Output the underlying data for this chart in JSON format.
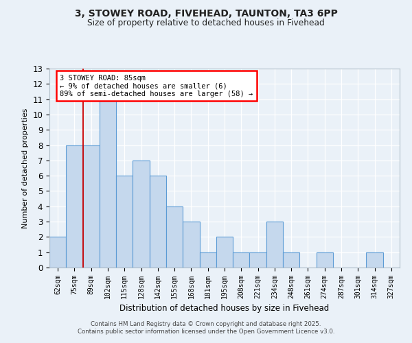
{
  "title1": "3, STOWEY ROAD, FIVEHEAD, TAUNTON, TA3 6PP",
  "title2": "Size of property relative to detached houses in Fivehead",
  "xlabel": "Distribution of detached houses by size in Fivehead",
  "ylabel": "Number of detached properties",
  "categories": [
    "62sqm",
    "75sqm",
    "89sqm",
    "102sqm",
    "115sqm",
    "128sqm",
    "142sqm",
    "155sqm",
    "168sqm",
    "181sqm",
    "195sqm",
    "208sqm",
    "221sqm",
    "234sqm",
    "248sqm",
    "261sqm",
    "274sqm",
    "287sqm",
    "301sqm",
    "314sqm",
    "327sqm"
  ],
  "values": [
    2,
    8,
    8,
    11,
    6,
    7,
    6,
    4,
    3,
    1,
    2,
    1,
    1,
    3,
    1,
    0,
    1,
    0,
    0,
    1,
    0
  ],
  "bar_color": "#c5d8ed",
  "bar_edge_color": "#5b9bd5",
  "red_line_index": 2,
  "annotation_title": "3 STOWEY ROAD: 85sqm",
  "annotation_line1": "← 9% of detached houses are smaller (6)",
  "annotation_line2": "89% of semi-detached houses are larger (58) →",
  "ylim": [
    0,
    13
  ],
  "yticks": [
    0,
    1,
    2,
    3,
    4,
    5,
    6,
    7,
    8,
    9,
    10,
    11,
    12,
    13
  ],
  "footer1": "Contains HM Land Registry data © Crown copyright and database right 2025.",
  "footer2": "Contains public sector information licensed under the Open Government Licence v3.0.",
  "background_color": "#eaf1f8",
  "grid_color": "#d0dce8",
  "white_grid": "#ffffff"
}
